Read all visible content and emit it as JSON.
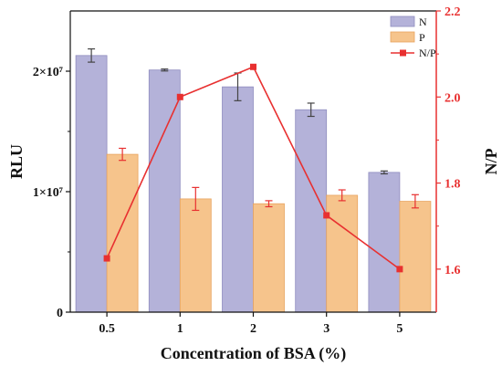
{
  "chart_data": {
    "type": "bar",
    "xlabel": "Concentration of BSA (%)",
    "ylabel_left": "RLU",
    "ylabel_right": "N/P",
    "categories": [
      "0.5",
      "1",
      "2",
      "3",
      "5"
    ],
    "ylim_left": [
      0,
      25000000
    ],
    "yticks_left": [
      {
        "value": 0,
        "label": "0"
      },
      {
        "value": 10000000,
        "label": "1×10⁷"
      },
      {
        "value": 20000000,
        "label": "2×10⁷"
      }
    ],
    "ylim_right": [
      1.5,
      2.2
    ],
    "yticks_right": [
      "1.6",
      "1.8",
      "2.0",
      "2.2"
    ],
    "series": [
      {
        "name": "N",
        "kind": "bar",
        "color": "#b4b2d9",
        "edge": "#8f8cbf",
        "values": [
          21300000,
          20100000,
          18700000,
          16800000,
          11600000
        ],
        "errors": [
          550000,
          80000,
          1150000,
          550000,
          120000
        ]
      },
      {
        "name": "P",
        "kind": "bar",
        "color": "#f6c48c",
        "edge": "#e8a45f",
        "values": [
          13100000,
          9400000,
          9000000,
          9700000,
          9200000
        ],
        "errors": [
          500000,
          950000,
          250000,
          450000,
          550000
        ]
      },
      {
        "name": "N/P",
        "kind": "line",
        "axis": "right",
        "color": "#e83030",
        "values": [
          1.625,
          2.0,
          2.07,
          1.725,
          1.6
        ]
      }
    ],
    "legend_position": "top-right"
  }
}
